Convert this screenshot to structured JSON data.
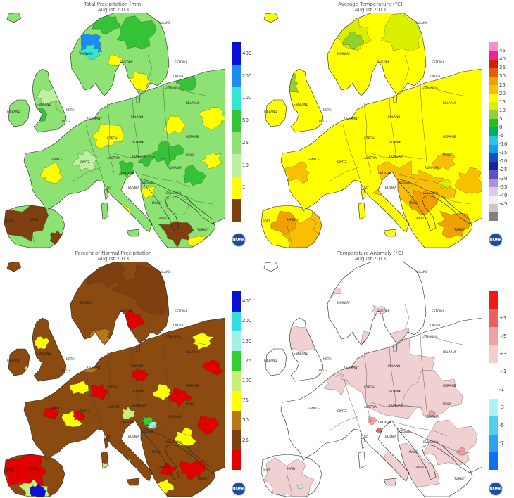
{
  "panels": [
    {
      "id": "precip",
      "title": "Total Precipitation (mm)",
      "subtitle": "August 2013",
      "colorbar": {
        "colors": [
          "#7f3f10",
          "#ffff00",
          "#bff0a0",
          "#8ce272",
          "#36c236",
          "#33e6d0",
          "#1d8cf2",
          "#0a10d8"
        ],
        "labels": [
          "1",
          "10",
          "25",
          "50",
          "100",
          "200",
          "400"
        ]
      },
      "base_color": "#8ce272",
      "logo": "NOAA",
      "map_labels": [
        "FINLAND",
        "NORWAY",
        "SWEDEN",
        "ESTONIA",
        "LATVIA",
        "LITHUANIA",
        "BELARUS",
        "IRELAND",
        "ENGLAND",
        "NETH",
        "BELG",
        "GERMANY",
        "POLAND",
        "CZECH",
        "SLOVAK",
        "UKRAINE",
        "FRANCE",
        "AUSTRIA",
        "HUNGARY",
        "ROMANIA",
        "SWITZ",
        "ITALY",
        "CROATIA",
        "SERBIA",
        "BOSNIA",
        "BULGARIA",
        "MACE",
        "SPAIN",
        "PORT",
        "GREECE",
        "TURKEY",
        "MOLD"
      ]
    },
    {
      "id": "temp",
      "title": "Average Temperature (°C)",
      "subtitle": "August 2013",
      "colorbar": {
        "colors": [
          "#808080",
          "#c8c8c8",
          "#f0f0f0",
          "#e0c8f0",
          "#b090d8",
          "#6050c0",
          "#2020a0",
          "#1050d0",
          "#10a0f0",
          "#30c0f0",
          "#00b060",
          "#20c020",
          "#90d030",
          "#d8f000",
          "#ffff00",
          "#f8c000",
          "#f0a000",
          "#e06000",
          "#d02000",
          "#f020a0",
          "#f090d0"
        ],
        "labels": [
          "45",
          "40",
          "35",
          "30",
          "25",
          "20",
          "15",
          "10",
          "5",
          "0",
          "-5",
          "-10",
          "-15",
          "-20",
          "-25",
          "-30",
          "-35",
          "-40",
          "-45"
        ]
      },
      "base_color": "#ffff00",
      "logo": "NOAA",
      "map_labels": [
        "FINLAND",
        "NORWAY",
        "SWEDEN",
        "ESTONIA",
        "LATVIA",
        "LITHUANIA",
        "BELARUS",
        "IRELAND",
        "ENGLAND",
        "NETH",
        "BELG",
        "GERMANY",
        "POLAND",
        "CZECH",
        "SLOVAK",
        "UKRAINE",
        "FRANCE",
        "AUSTRIA",
        "HUNGARY",
        "ROMANIA",
        "SWITZ",
        "ITALY",
        "CROATIA",
        "SERBIA",
        "BOSNIA",
        "BULGARIA",
        "MACE",
        "SPAIN",
        "PORT",
        "GREECE",
        "TURKEY",
        "MOLD"
      ]
    },
    {
      "id": "pnp",
      "title": "Percent of Normal Precipitation",
      "subtitle": "August 2013",
      "colorbar": {
        "colors": [
          "#e00000",
          "#7f3f10",
          "#b87818",
          "#ffff00",
          "#c8f078",
          "#30d030",
          "#a0f0e8",
          "#30e0e0",
          "#0a10d8"
        ],
        "labels": [
          "25",
          "50",
          "75",
          "100",
          "125",
          "150",
          "200",
          "400"
        ]
      },
      "base_color": "#8b4a10",
      "logo": "NOAA",
      "map_labels": [
        "FINLAND",
        "NORWAY",
        "SWEDEN",
        "ESTONIA",
        "LATVIA",
        "LITHUANIA",
        "BELARUS",
        "IRELAND",
        "ENGLAND",
        "NETH",
        "BELG",
        "GERMANY",
        "POLAND",
        "CZECH",
        "SLOVAK",
        "UKRAINE",
        "FRANCE",
        "AUSTRIA",
        "HUNGARY",
        "ROMANIA",
        "SWITZ",
        "ITALY",
        "CROATIA",
        "SERBIA",
        "BOSNIA",
        "BULGARIA",
        "MACE",
        "SPAIN",
        "PORT",
        "GREECE",
        "TURKEY",
        "MOLD"
      ]
    },
    {
      "id": "anom",
      "title": "Temperature Anomaly (°C)",
      "subtitle": "August 2013",
      "colorbar": {
        "colors": [
          "#1070f0",
          "#30a0f0",
          "#50d0f0",
          "#b0f0f8",
          "#ffffff",
          "#ffffff",
          "#f0d0d0",
          "#f0a0a0",
          "#e86060",
          "#f01818"
        ],
        "labels": [
          "-7",
          "-5",
          "-3",
          "-1",
          "+1",
          "+3",
          "+5",
          "+7"
        ]
      },
      "base_color": "#ffffff",
      "logo": "NOAA",
      "map_labels": [
        "FINLAND",
        "NORWAY",
        "SWEDEN",
        "ESTONIA",
        "LATVIA",
        "LITHUANIA",
        "BELARUS",
        "IRELAND",
        "ENGLAND",
        "NETH",
        "BELG",
        "GERMANY",
        "POLAND",
        "CZECH",
        "SLOVAK",
        "UKRAINE",
        "FRANCE",
        "AUSTRIA",
        "HUNGARY",
        "ROMANIA",
        "SWITZ",
        "ITALY",
        "CROATIA",
        "SERBIA",
        "BOSNIA",
        "BULGARIA",
        "MACE",
        "SPAIN",
        "PORT",
        "GREECE",
        "TURKEY",
        "MOLD"
      ]
    }
  ]
}
